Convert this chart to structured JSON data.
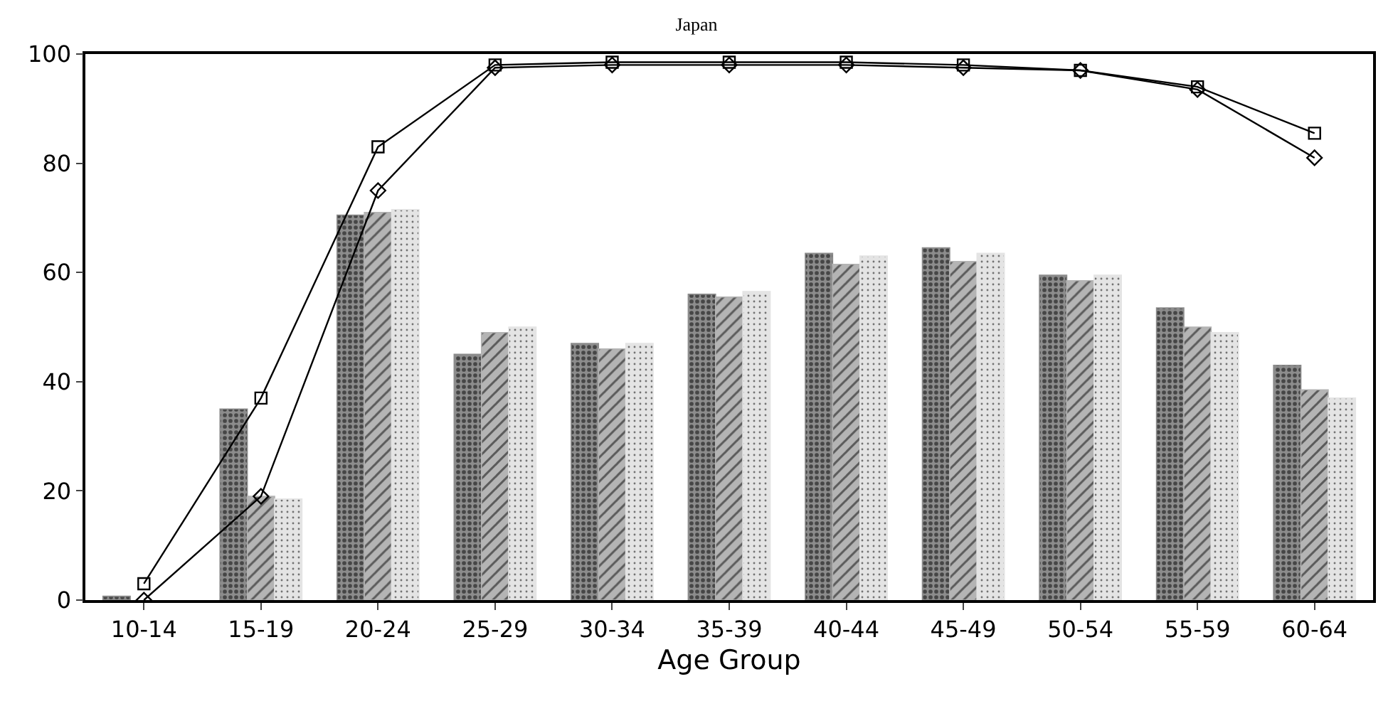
{
  "chart_data": {
    "type": "bar",
    "title": "Japan",
    "xlabel": "Age Group",
    "categories": [
      "10-14",
      "15-19",
      "20-24",
      "25-29",
      "30-34",
      "35-39",
      "40-44",
      "45-49",
      "50-54",
      "55-59",
      "60-64"
    ],
    "series": [
      {
        "type": "bar",
        "color": "#8c8c8c",
        "values": [
          0.7,
          35,
          70.5,
          45,
          47,
          56,
          63.5,
          64.5,
          59.5,
          53.5,
          43
        ]
      },
      {
        "type": "bar",
        "color": "#b4b4b4",
        "values": [
          null,
          19,
          71,
          49,
          46,
          55.5,
          61.5,
          62,
          58.5,
          50,
          38.5
        ]
      },
      {
        "type": "bar",
        "color": "#e4e4e4",
        "values": [
          null,
          18.5,
          71.5,
          50,
          47,
          56.5,
          63,
          63.5,
          59.5,
          49,
          37
        ]
      },
      {
        "type": "line",
        "color": "#000000",
        "marker": "square",
        "values": [
          3,
          37,
          83,
          98,
          98.5,
          98.5,
          98.5,
          98,
          97,
          94,
          85.5
        ]
      },
      {
        "type": "line",
        "color": "#000000",
        "marker": "diamond",
        "values": [
          0,
          19,
          75,
          97.5,
          98,
          98,
          98,
          97.5,
          97,
          93.5,
          81
        ]
      }
    ],
    "ylim": [
      0,
      100
    ],
    "yticks": [
      0,
      20,
      40,
      60,
      80,
      100
    ],
    "grid": false
  }
}
